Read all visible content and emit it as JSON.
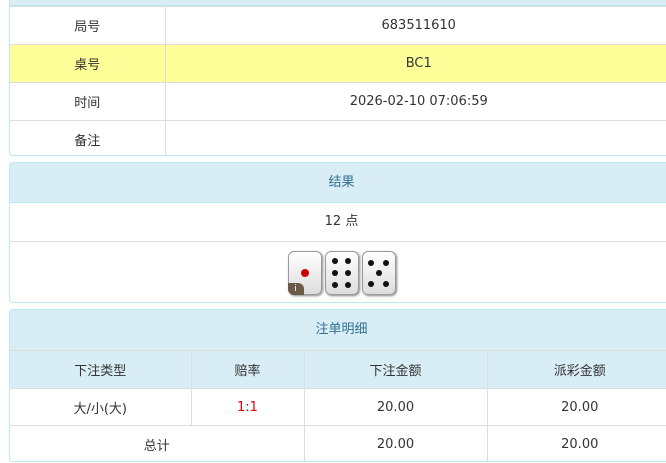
{
  "info": {
    "rows": [
      {
        "label": "局号",
        "value": "683511610"
      },
      {
        "label": "桌号",
        "value": "BC1"
      },
      {
        "label": "时间",
        "value": "2026-02-10 07:06:59"
      },
      {
        "label": "备注",
        "value": ""
      }
    ]
  },
  "result": {
    "title": "结果",
    "points": "12 点",
    "dice": [
      1,
      6,
      5
    ],
    "info_badge": "i"
  },
  "bets": {
    "title": "注单明细",
    "headers": [
      "下注类型",
      "赔率",
      "下注金额",
      "派彩金额"
    ],
    "rows": [
      {
        "type": "大/小(大)",
        "odds": "1:1",
        "amount": "20.00",
        "payout": "20.00"
      }
    ],
    "total": {
      "label": "总计",
      "amount": "20.00",
      "payout": "20.00"
    },
    "colors": {
      "odds": "#e00000",
      "header_bg": "#d9edf7",
      "highlight": "#ffff99"
    }
  }
}
